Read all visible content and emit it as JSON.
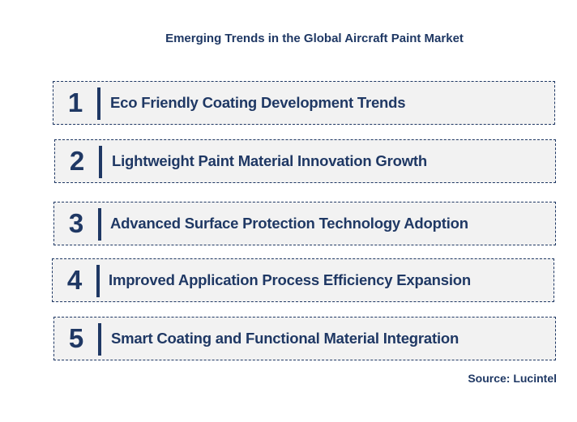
{
  "title": "Emerging Trends in the Global Aircraft Paint Market",
  "trends": [
    {
      "number": "1",
      "label": "Eco Friendly Coating Development Trends"
    },
    {
      "number": "2",
      "label": "Lightweight Paint Material Innovation Growth"
    },
    {
      "number": "3",
      "label": "Advanced Surface Protection Technology Adoption"
    },
    {
      "number": "4",
      "label": "Improved Application Process Efficiency Expansion"
    },
    {
      "number": "5",
      "label": "Smart Coating and Functional Material Integration"
    }
  ],
  "source": "Source: Lucintel",
  "colors": {
    "text": "#1f3864",
    "box_fill": "#f2f2f2",
    "box_border": "#1f3864"
  }
}
